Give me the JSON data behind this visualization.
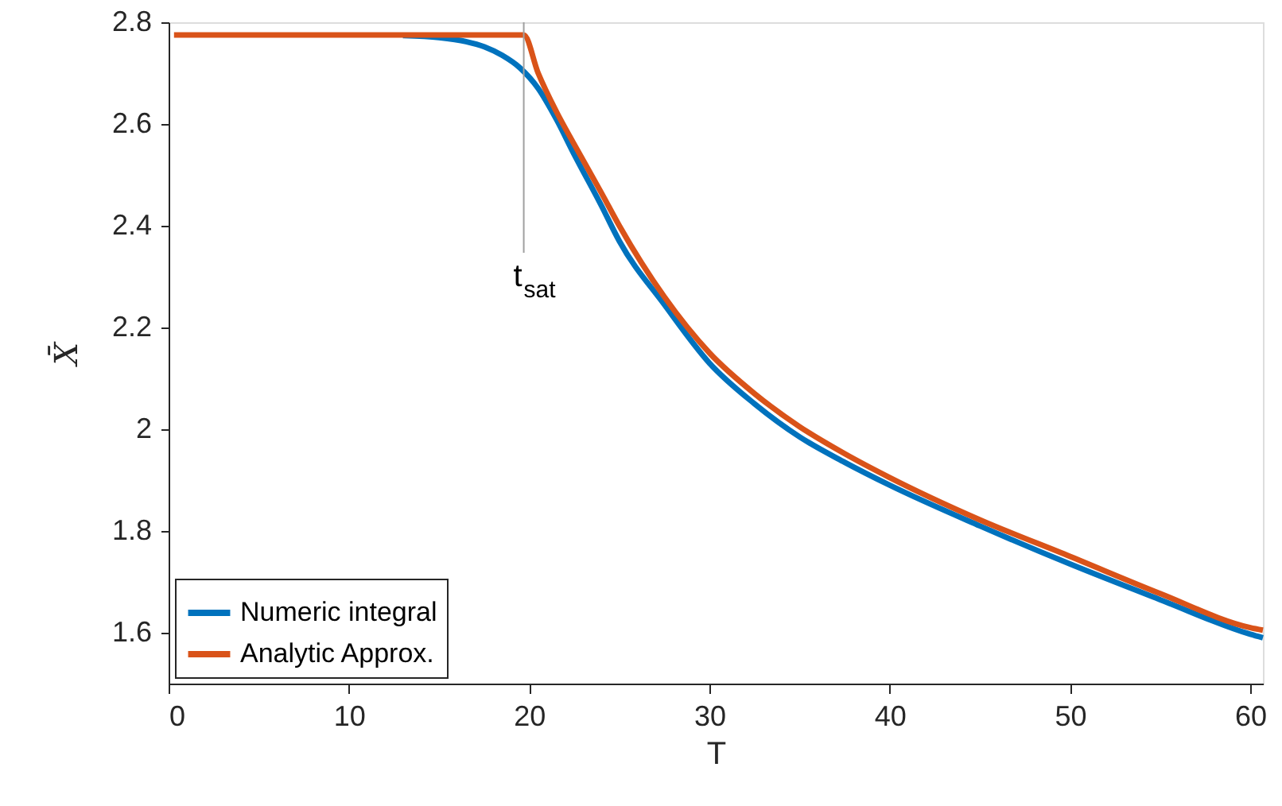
{
  "chart_data": {
    "type": "line",
    "xlabel": "T",
    "ylabel": "X̄",
    "xlim": [
      0,
      60.7
    ],
    "ylim": [
      1.5,
      2.8
    ],
    "xticks": [
      0,
      10,
      20,
      30,
      40,
      50,
      60
    ],
    "yticks": [
      1.6,
      1.8,
      {
        "value": 2,
        "label": "2"
      },
      2.2,
      2.4,
      2.6,
      2.8
    ],
    "grid": false,
    "legend": "bottom left",
    "line_style": "solid",
    "marker": "none",
    "ref_lines": [
      {
        "axis": "x",
        "value": 19.7,
        "label": "t$_{sat}$",
        "color": "#a0a0a0"
      }
    ],
    "series": [
      {
        "name": "Numeric integral",
        "color": "#0072bd",
        "x": [
          13,
          15,
          16.5,
          17.5,
          18.5,
          19.5,
          20.5,
          21.5,
          22.5,
          24,
          25,
          27.5,
          30,
          32.5,
          35,
          37.5,
          40,
          45,
          50,
          55,
          60,
          60.7
        ],
        "values": [
          2.774,
          2.77,
          2.762,
          2.752,
          2.735,
          2.71,
          2.67,
          2.61,
          2.54,
          2.44,
          2.37,
          2.245,
          2.13,
          2.05,
          1.985,
          1.935,
          1.89,
          1.81,
          1.735,
          1.665,
          1.597,
          1.59
        ]
      },
      {
        "name": "Analytic Approx.",
        "color": "#d95319",
        "x": [
          0.3,
          5,
          10,
          15,
          19.7,
          20.5,
          21.5,
          22.5,
          24,
          25,
          27.5,
          30,
          32.5,
          35,
          37.5,
          40,
          45,
          50,
          55,
          60,
          60.7
        ],
        "values": [
          2.775,
          2.775,
          2.775,
          2.775,
          2.775,
          2.7,
          2.625,
          2.56,
          2.465,
          2.4,
          2.26,
          2.15,
          2.07,
          2.005,
          1.952,
          1.905,
          1.822,
          1.75,
          1.677,
          1.61,
          1.605
        ]
      }
    ]
  }
}
